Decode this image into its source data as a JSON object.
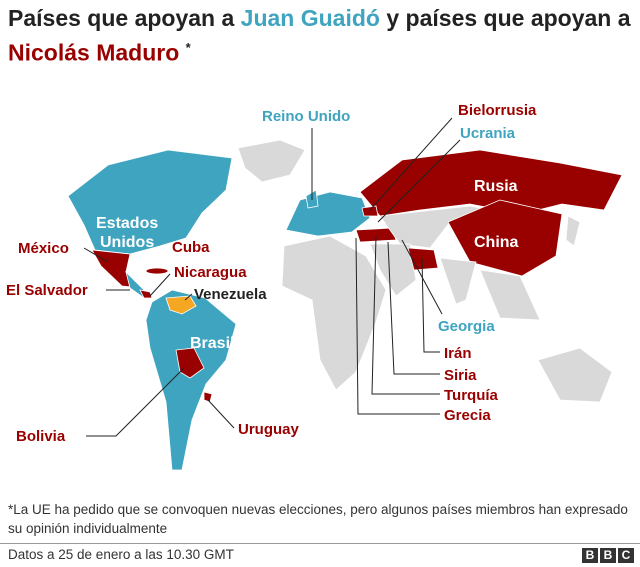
{
  "header": {
    "title": [
      "Países que apoyan a ",
      "Juan Guaidó",
      " y países que apoyan a ",
      "Nicolás Maduro",
      "*"
    ]
  },
  "map": {
    "reino_unido": "Reino Unido",
    "bielorrusia": "Bielorrusia",
    "ucrania": "Ucrania",
    "rusia": "Rusia",
    "china": "China",
    "estados_unidos": [
      "Estados",
      "Unidos"
    ],
    "mexico": "México",
    "cuba": "Cuba",
    "nicaragua": "Nicaragua",
    "el_salvador": "El Salvador",
    "venezuela": "Venezuela",
    "brasil": "Brasil",
    "georgia": "Georgia",
    "iran": "Irán",
    "siria": "Siria",
    "turquia": "Turquía",
    "grecia": "Grecia",
    "bolivia": "Bolivia",
    "uruguay": "Uruguay"
  },
  "footnote": "*La UE ha pedido que se convoquen nuevas elecciones, pero algunos países miembros han expresado su opinión individualmente",
  "footer": {
    "source": "Datos a 25 de enero a las 10.30 GMT",
    "logo": [
      "B",
      "B",
      "C"
    ]
  }
}
